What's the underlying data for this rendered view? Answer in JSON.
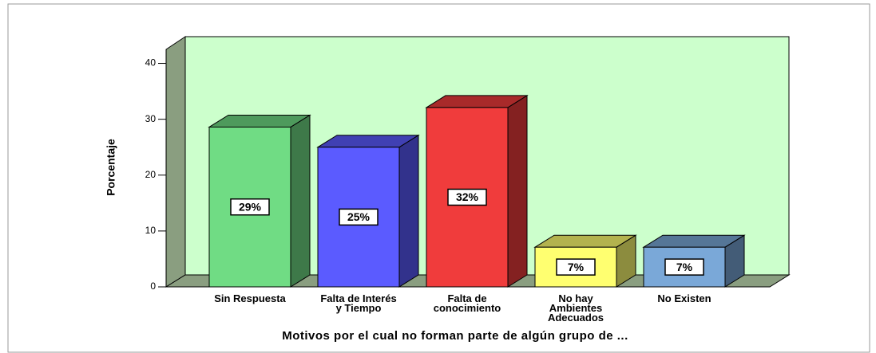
{
  "chart_data": {
    "type": "bar3d",
    "ylabel": "Porcentaje",
    "xlabel": "Motivos por el cual no forman parte de algún grupo de ...",
    "categories": [
      "Sin Respuesta",
      "Falta de Interés y Tiempo",
      "Falta de conocimiento",
      "No hay Ambientes Adecuados",
      "No Existen"
    ],
    "values": [
      28.6,
      25.0,
      32.1,
      7.1,
      7.1
    ],
    "value_labels": [
      "29%",
      "25%",
      "32%",
      "7%",
      "7%"
    ],
    "colors": [
      "#70dc84",
      "#5b5bff",
      "#f03c3c",
      "#ffff70",
      "#7aa8d8"
    ],
    "ylim": [
      0,
      42.5
    ],
    "yticks": [
      0,
      10,
      20,
      30,
      40
    ]
  }
}
